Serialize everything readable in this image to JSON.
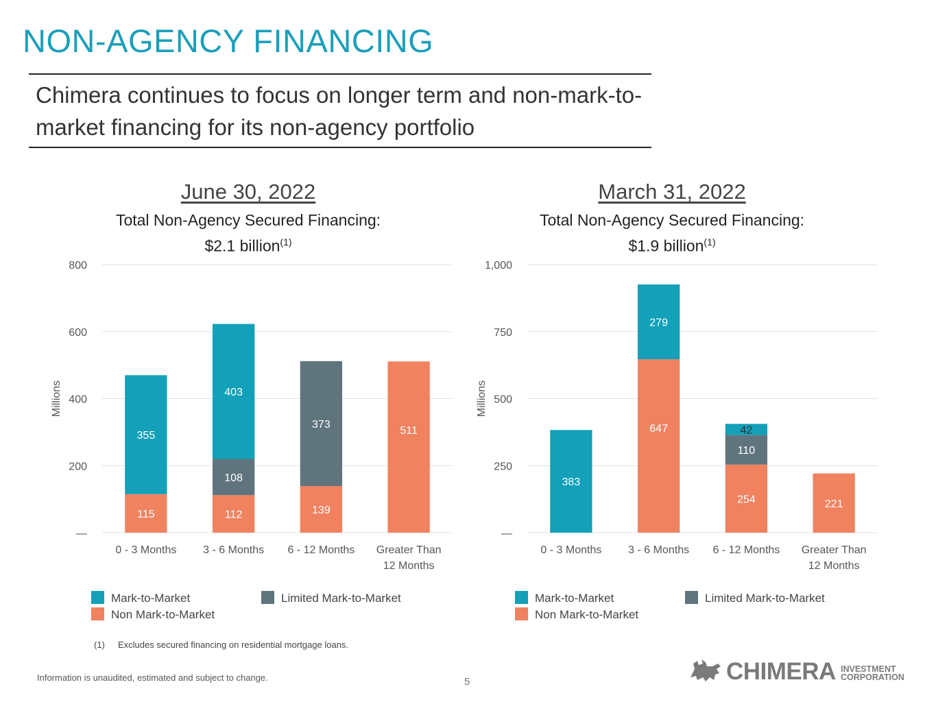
{
  "page": {
    "title": "NON-AGENCY FINANCING",
    "subtitle": "Chimera continues to focus on longer term and non-mark-to-market financing for its non-agency portfolio",
    "footnote_number": "(1)",
    "footnote_text": "Excludes secured financing on residential mortgage loans.",
    "disclaimer": "Information is unaudited, estimated and subject to change.",
    "page_number": "5",
    "logo_word": "CHIMERA",
    "logo_line1": "INVESTMENT",
    "logo_line2": "CORPORATION"
  },
  "panels": [
    {
      "heading": "June 30, 2022",
      "subheading_line1": "Total Non-Agency Secured Financing:",
      "subheading_line2": "$2.1 billion",
      "subheading_sup": "(1)"
    },
    {
      "heading": "March 31, 2022",
      "subheading_line1": "Total Non-Agency Secured Financing:",
      "subheading_line2": "$1.9 billion",
      "subheading_sup": "(1)"
    }
  ],
  "colors": {
    "mark_to_market": "#13a0b8",
    "limited_mark_to_market": "#5f747d",
    "non_mark_to_market": "#f08260",
    "grid": "#e2e2e2",
    "axis_text": "#555555"
  },
  "legend": {
    "mark_to_market": "Mark-to-Market",
    "limited_mark_to_market": "Limited Mark-to-Market",
    "non_mark_to_market": "Non Mark-to-Market"
  },
  "chart_data": [
    {
      "type": "bar",
      "stacked": true,
      "title": "June 30, 2022",
      "subtitle": "Total Non-Agency Secured Financing: $2.1 billion(1)",
      "ylabel": "Millions",
      "ylim": [
        0,
        800
      ],
      "yticks": [
        0,
        200,
        400,
        600,
        800
      ],
      "ytick_labels": [
        "—",
        "200",
        "400",
        "600",
        "800"
      ],
      "categories": [
        "0 - 3 Months",
        "3 - 6 Months",
        "6 - 12 Months",
        "Greater Than 12 Months"
      ],
      "category_lines": [
        [
          "0 - 3 Months"
        ],
        [
          "3 - 6 Months"
        ],
        [
          "6 - 12 Months"
        ],
        [
          "Greater Than",
          "12 Months"
        ]
      ],
      "series": [
        {
          "name": "Non Mark-to-Market",
          "color_key": "non_mark_to_market",
          "values": [
            115,
            112,
            139,
            511
          ]
        },
        {
          "name": "Limited Mark-to-Market",
          "color_key": "limited_mark_to_market",
          "values": [
            0,
            108,
            373,
            0
          ]
        },
        {
          "name": "Mark-to-Market",
          "color_key": "mark_to_market",
          "values": [
            355,
            403,
            0,
            0
          ]
        }
      ],
      "legend_position": "bottom",
      "grid": true
    },
    {
      "type": "bar",
      "stacked": true,
      "title": "March 31, 2022",
      "subtitle": "Total Non-Agency Secured Financing: $1.9 billion(1)",
      "ylabel": "Millions",
      "ylim": [
        0,
        1000
      ],
      "yticks": [
        0,
        250,
        500,
        750,
        1000
      ],
      "ytick_labels": [
        "—",
        "250",
        "500",
        "750",
        "1,000"
      ],
      "categories": [
        "0 - 3 Months",
        "3 - 6 Months",
        "6 - 12 Months",
        "Greater Than 12 Months"
      ],
      "category_lines": [
        [
          "0 - 3 Months"
        ],
        [
          "3 - 6 Months"
        ],
        [
          "6 - 12 Months"
        ],
        [
          "Greater Than",
          "12 Months"
        ]
      ],
      "series": [
        {
          "name": "Non Mark-to-Market",
          "color_key": "non_mark_to_market",
          "values": [
            0,
            647,
            254,
            221
          ]
        },
        {
          "name": "Limited Mark-to-Market",
          "color_key": "limited_mark_to_market",
          "values": [
            0,
            0,
            110,
            0
          ]
        },
        {
          "name": "Mark-to-Market",
          "color_key": "mark_to_market",
          "values": [
            383,
            279,
            42,
            0
          ]
        }
      ],
      "legend_position": "bottom",
      "grid": true
    }
  ]
}
